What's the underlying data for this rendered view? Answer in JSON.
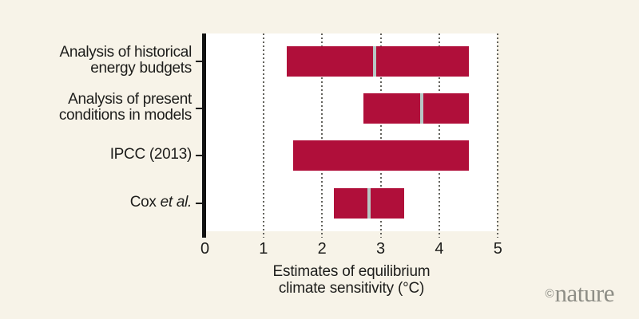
{
  "figure": {
    "background_color": "#f7f3e8",
    "plot_background_color": "#ffffff",
    "axis_color": "#111111",
    "text_color": "#1d1d1b",
    "gridline_color": "#63625c",
    "logo_color": "#8e8e86"
  },
  "chart_data": {
    "type": "bar",
    "subtype": "horizontal-range-bars",
    "title": "",
    "xlabel_lines": [
      "Estimates of equilibrium",
      "climate sensitivity (°C)"
    ],
    "xlabel": "Estimates of equilibrium climate sensitivity (°C)",
    "xlim": [
      0,
      5
    ],
    "x_ticks": [
      0,
      1,
      2,
      3,
      4,
      5
    ],
    "grid": "dotted-vertical",
    "legend": "none",
    "bar_color": "#b00f3a",
    "marker_color": "#b7c7c4",
    "rows": [
      {
        "label": "Analysis of historical energy budgets",
        "label_lines": [
          [
            {
              "t": "Analysis of historical"
            }
          ],
          [
            {
              "t": "energy budgets"
            }
          ]
        ],
        "low": 1.4,
        "high": 4.5,
        "best": 2.9
      },
      {
        "label": "Analysis of present conditions in models",
        "label_lines": [
          [
            {
              "t": "Analysis of present"
            }
          ],
          [
            {
              "t": "conditions in models"
            }
          ]
        ],
        "low": 2.7,
        "high": 4.5,
        "best": 3.7
      },
      {
        "label": "IPCC (2013)",
        "label_lines": [
          [
            {
              "t": "IPCC (2013)"
            }
          ]
        ],
        "low": 1.5,
        "high": 4.5,
        "best": null
      },
      {
        "label": "Cox et al.",
        "label_lines": [
          [
            {
              "t": "Cox "
            },
            {
              "t": "et al.",
              "i": true
            }
          ]
        ],
        "low": 2.2,
        "high": 3.4,
        "best": 2.8
      }
    ]
  },
  "footer": {
    "copyright": "©",
    "brand": "nature"
  }
}
